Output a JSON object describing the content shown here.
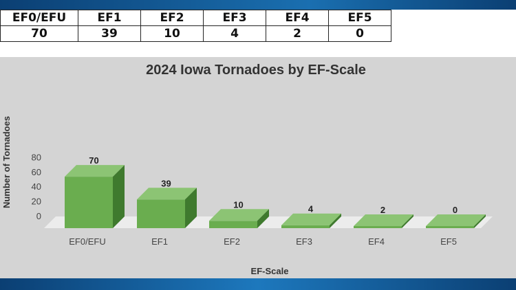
{
  "summary_table": {
    "headers": [
      "EF0/EFU",
      "EF1",
      "EF2",
      "EF3",
      "EF4",
      "EF5"
    ],
    "values": [
      "70",
      "39",
      "10",
      "4",
      "2",
      "0"
    ]
  },
  "colors": {
    "bar_front": "#6aad4f",
    "bar_top": "#8cc474",
    "bar_side": "#3f7a2e",
    "floor": "#ececec",
    "band": "#0f4f86"
  },
  "chart_data": {
    "type": "bar",
    "title": "2024 Iowa Tornadoes by EF-Scale",
    "xlabel": "EF-Scale",
    "ylabel": "Number of Tornadoes",
    "categories": [
      "EF0/EFU",
      "EF1",
      "EF2",
      "EF3",
      "EF4",
      "EF5"
    ],
    "values": [
      70,
      39,
      10,
      4,
      2,
      0
    ],
    "ylim": [
      0,
      80
    ],
    "yticks": [
      0,
      20,
      40,
      60,
      80
    ],
    "style": "3d",
    "grid": false,
    "legend": "none"
  }
}
